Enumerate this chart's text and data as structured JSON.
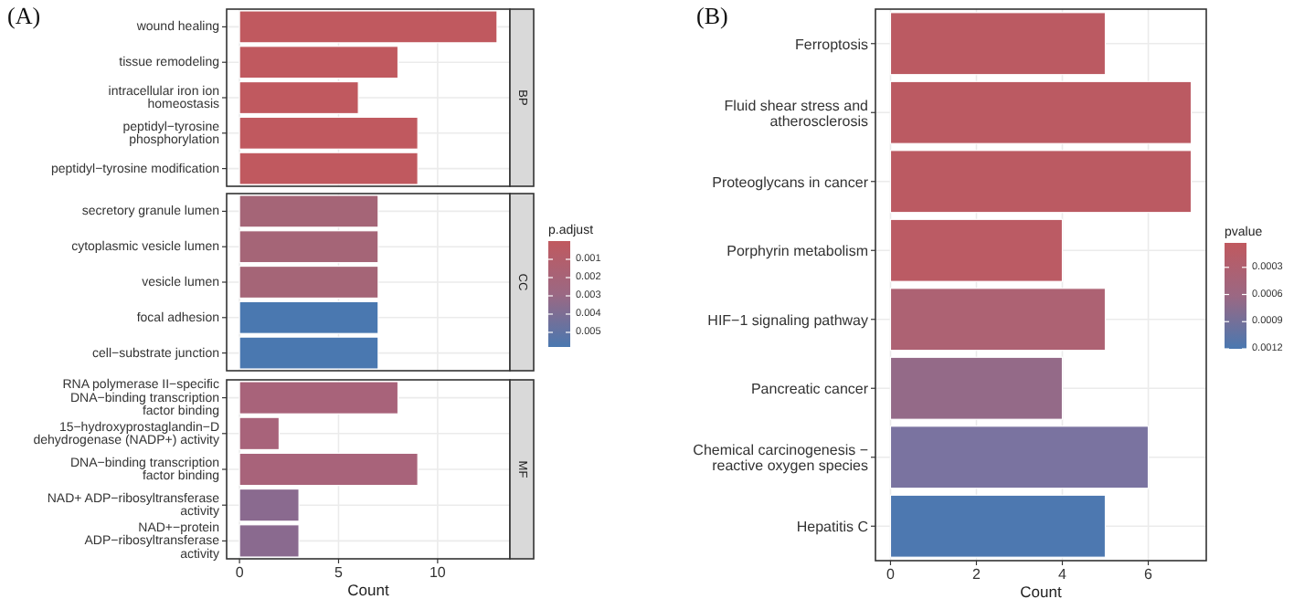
{
  "chart_data": [
    {
      "type": "bar",
      "orientation": "horizontal",
      "title": "(A)",
      "y2label": "BP",
      "categories": [
        "wound healing",
        "tissue remodeling",
        "intracellular iron ion homeostasis",
        "peptidyl−tyrosine phosphorylation",
        "peptidyl−tyrosine modification"
      ],
      "values": [
        13,
        8,
        6,
        9,
        9
      ],
      "colors": [
        "#c0595f",
        "#c0595f",
        "#c0595f",
        "#c0595f",
        "#c0595f"
      ],
      "xlim": [
        -0.65,
        13.65
      ],
      "xticks": [
        0,
        5,
        10
      ],
      "grid": true,
      "tick_labels": "y"
    },
    {
      "type": "bar",
      "orientation": "horizontal",
      "y2label": "CC",
      "categories": [
        "secretory granule lumen",
        "cytoplasmic vesicle lumen",
        "vesicle lumen",
        "focal adhesion",
        "cell−substrate junction"
      ],
      "values": [
        7,
        7,
        7,
        7,
        7
      ],
      "colors": [
        "#a56577",
        "#a56577",
        "#a56577",
        "#4a78b0",
        "#4a78b0"
      ],
      "xlim": [
        -0.65,
        13.65
      ],
      "xticks": [
        0,
        5,
        10
      ],
      "grid": true,
      "tick_labels": "y",
      "clabel": "p.adjust",
      "clim": [
        0,
        0.0058
      ],
      "cticks": [
        0.001,
        0.002,
        0.003,
        0.004,
        0.005
      ]
    },
    {
      "type": "bar",
      "orientation": "horizontal",
      "y2label": "MF",
      "xlabel": "Count",
      "categories": [
        "RNA polymerase II−specific DNA−binding transcription factor binding",
        "15−hydroxyprostaglandin−D dehydrogenase (NADP+) activity",
        "DNA−binding transcription factor binding",
        "NAD+ ADP−ribosyltransferase activity",
        "NAD+−protein ADP−ribosyltransferase activity"
      ],
      "values": [
        8,
        2,
        9,
        3,
        3
      ],
      "colors": [
        "#a8637a",
        "#a8637a",
        "#a8637a",
        "#8a6a8f",
        "#8a6a8f"
      ],
      "xlim": [
        -0.65,
        13.65
      ],
      "xticks": [
        0,
        5,
        10
      ],
      "grid": true
    },
    {
      "type": "bar",
      "orientation": "horizontal",
      "title": "(B)",
      "xlabel": "Count",
      "categories": [
        "Ferroptosis",
        "Fluid shear stress and atherosclerosis",
        "Proteoglycans in cancer",
        "Porphyrin metabolism",
        "HIF−1 signaling pathway",
        "Pancreatic cancer",
        "Chemical carcinogenesis − reactive oxygen species",
        "Hepatitis C"
      ],
      "values": [
        5,
        7,
        7,
        4,
        5,
        4,
        6,
        5
      ],
      "colors": [
        "#bb5a62",
        "#bb5a62",
        "#bb5a62",
        "#bb5b64",
        "#ad6273",
        "#946a88",
        "#7a73a0",
        "#4d78b0"
      ],
      "xlim": [
        -0.35,
        7.35
      ],
      "xticks": [
        0,
        2,
        4,
        6
      ],
      "grid": true,
      "clabel": "pvalue",
      "clim": [
        3e-05,
        0.0012
      ],
      "cticks": [
        0.0003,
        0.0006,
        0.0009,
        0.0012
      ]
    }
  ]
}
